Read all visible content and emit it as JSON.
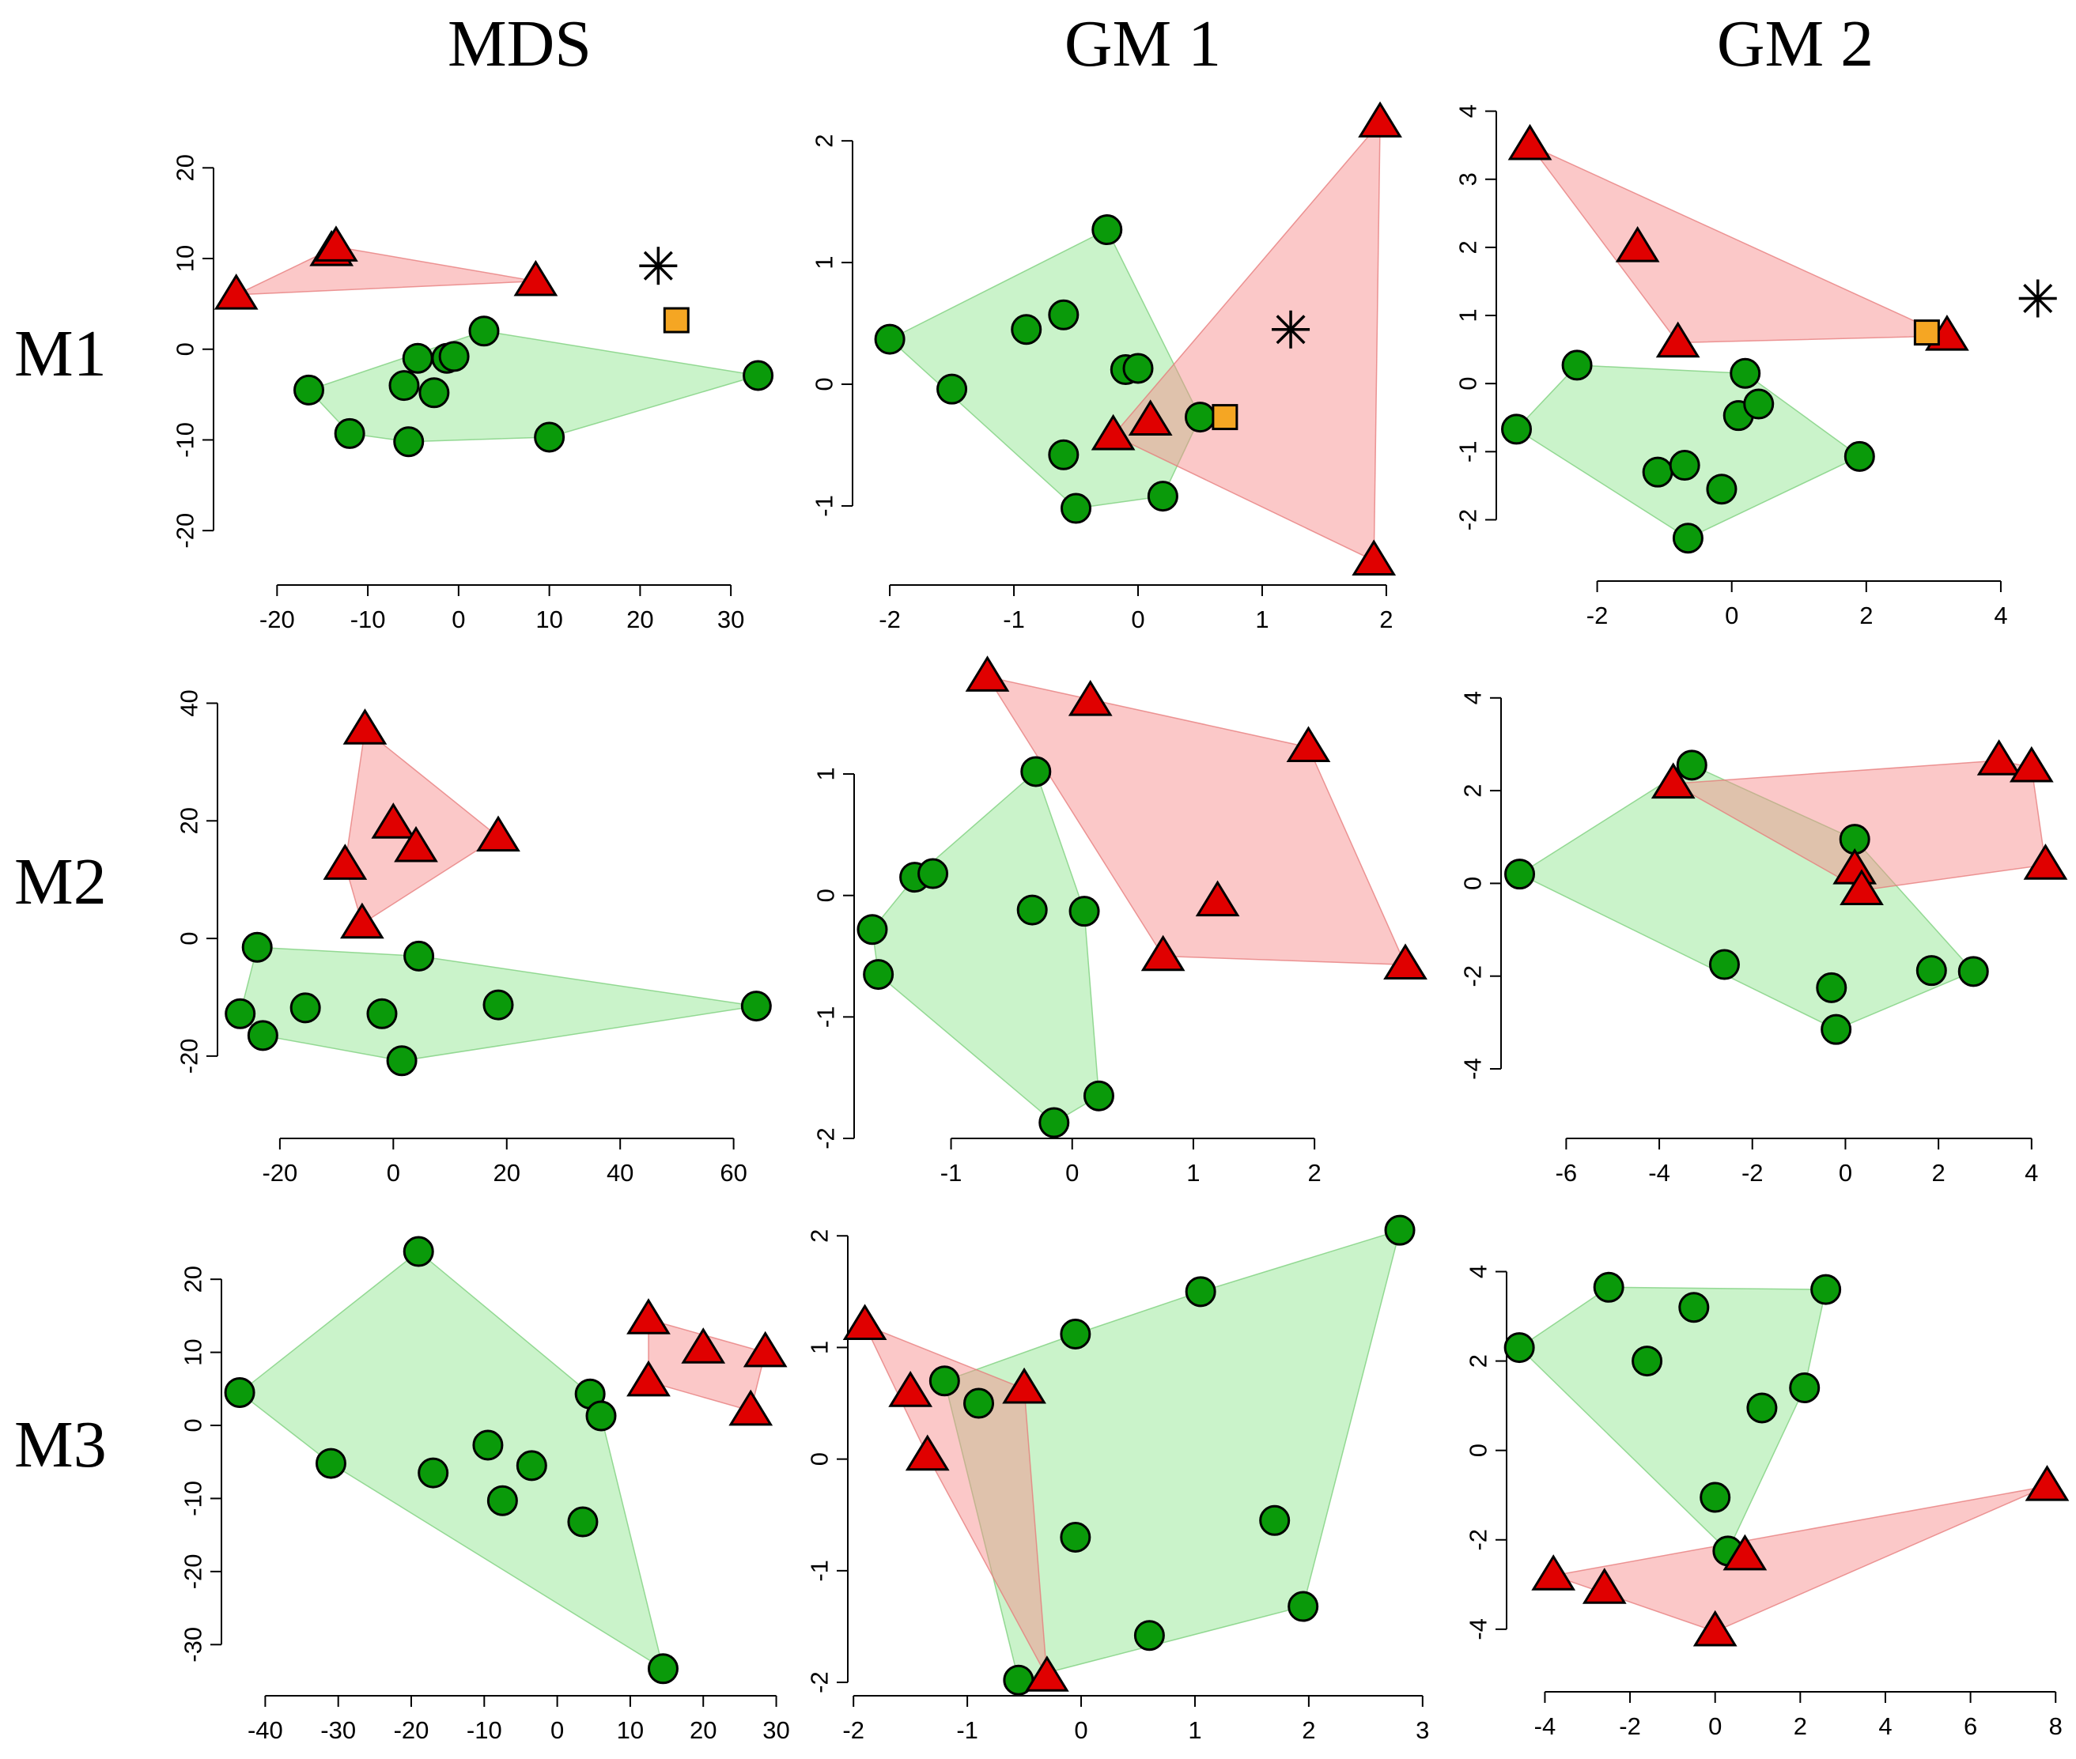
{
  "column_titles": [
    "MDS",
    "GM 1",
    "GM 2"
  ],
  "row_titles": [
    "M1",
    "M2",
    "M3"
  ],
  "colors": {
    "green_group": "#0a9a0a",
    "red_group": "#e00000",
    "square_marker": "#f5a623"
  },
  "chart_data": [
    {
      "type": "scatter",
      "row": "M1",
      "column": "MDS",
      "xlim": [
        -27,
        36
      ],
      "ylim": [
        -26,
        27
      ],
      "xticks": [
        -20,
        -10,
        0,
        10,
        20,
        30
      ],
      "yticks": [
        -20,
        -10,
        0,
        10,
        20
      ],
      "green": [
        [
          -16.5,
          -4.5
        ],
        [
          -12,
          -9.3
        ],
        [
          -5.5,
          -10.2
        ],
        [
          -6,
          -4
        ],
        [
          -4.5,
          -1
        ],
        [
          -2.7,
          -4.8
        ],
        [
          -1.3,
          -1
        ],
        [
          -0.5,
          -0.8
        ],
        [
          2.8,
          2
        ],
        [
          10,
          -9.7
        ],
        [
          33,
          -2.9
        ]
      ],
      "red": [
        [
          -24.5,
          6
        ],
        [
          -14,
          10.8
        ],
        [
          -13.5,
          11.3
        ],
        [
          8.5,
          7.5
        ]
      ],
      "square": [
        [
          24,
          3.2
        ]
      ],
      "star": [
        [
          22,
          9.2
        ]
      ]
    },
    {
      "type": "scatter",
      "row": "M1",
      "column": "GM 1",
      "xlim": [
        -2.3,
        2.3
      ],
      "ylim": [
        -1.65,
        2.3
      ],
      "xticks": [
        -2,
        -1,
        0,
        1,
        2
      ],
      "yticks": [
        -1,
        0,
        1,
        2
      ],
      "green": [
        [
          -2,
          0.37
        ],
        [
          -1.5,
          -0.04
        ],
        [
          -0.9,
          0.45
        ],
        [
          -0.6,
          0.57
        ],
        [
          -0.6,
          -0.58
        ],
        [
          -0.5,
          -1.02
        ],
        [
          -0.25,
          1.27
        ],
        [
          -0.1,
          0.12
        ],
        [
          0,
          0.13
        ],
        [
          0.2,
          -0.92
        ],
        [
          0.5,
          -0.27
        ]
      ],
      "red": [
        [
          -0.2,
          -0.42
        ],
        [
          0.1,
          -0.3
        ],
        [
          1.95,
          2.15
        ],
        [
          1.9,
          -1.45
        ]
      ],
      "square": [
        [
          0.7,
          -0.27
        ]
      ],
      "star": [
        [
          1.23,
          0.45
        ]
      ]
    },
    {
      "type": "scatter",
      "row": "M1",
      "column": "GM 2",
      "xlim": [
        -3.5,
        5.0
      ],
      "ylim": [
        -2.9,
        4.1
      ],
      "xticks": [
        -2,
        0,
        2,
        4
      ],
      "yticks": [
        -2,
        -1,
        0,
        1,
        2,
        3,
        4
      ],
      "green": [
        [
          -3.2,
          -0.67
        ],
        [
          -2.3,
          0.27
        ],
        [
          -1.1,
          -1.3
        ],
        [
          -0.7,
          -1.2
        ],
        [
          -0.65,
          -2.27
        ],
        [
          -0.15,
          -1.55
        ],
        [
          0.1,
          -0.47
        ],
        [
          0.2,
          0.15
        ],
        [
          0.4,
          -0.3
        ],
        [
          1.9,
          -1.07
        ]
      ],
      "red": [
        [
          -3,
          3.5
        ],
        [
          -1.4,
          2
        ],
        [
          -0.8,
          0.6
        ],
        [
          3.2,
          0.7
        ]
      ],
      "square": [
        [
          2.9,
          0.75
        ]
      ],
      "star": [
        [
          4.55,
          1.25
        ]
      ]
    },
    {
      "type": "scatter",
      "row": "M2",
      "column": "MDS",
      "xlim": [
        -31,
        68
      ],
      "ylim": [
        -34,
        48
      ],
      "xticks": [
        -20,
        0,
        20,
        40,
        60
      ],
      "yticks": [
        -20,
        0,
        20,
        40
      ],
      "green": [
        [
          -27,
          -12.8
        ],
        [
          -24,
          -1.5
        ],
        [
          -23,
          -16.5
        ],
        [
          -15.5,
          -11.8
        ],
        [
          -2,
          -12.8
        ],
        [
          1.5,
          -20.8
        ],
        [
          4.5,
          -3
        ],
        [
          18.5,
          -11.3
        ],
        [
          64,
          -11.5
        ]
      ],
      "red": [
        [
          -5,
          35.5
        ],
        [
          0,
          19.5
        ],
        [
          4,
          15.5
        ],
        [
          -8.5,
          12.5
        ],
        [
          -5.5,
          2.5
        ],
        [
          18.5,
          17.3
        ]
      ],
      "square": [],
      "star": []
    },
    {
      "type": "scatter",
      "row": "M2",
      "column": "GM 1",
      "xlim": [
        -1.8,
        2.9
      ],
      "ylim": [
        -2.0,
        1.97
      ],
      "xticks": [
        -1,
        0,
        1,
        2
      ],
      "yticks": [
        -2,
        -1,
        0,
        1
      ],
      "green": [
        [
          -1.65,
          -0.28
        ],
        [
          -1.6,
          -0.65
        ],
        [
          -1.3,
          0.15
        ],
        [
          -1.15,
          0.18
        ],
        [
          -0.3,
          1.02
        ],
        [
          -0.33,
          -0.12
        ],
        [
          0.1,
          -0.13
        ],
        [
          -0.15,
          -1.87
        ],
        [
          0.22,
          -1.65
        ]
      ],
      "red": [
        [
          -0.7,
          1.8
        ],
        [
          0.15,
          1.6
        ],
        [
          1.95,
          1.22
        ],
        [
          1.2,
          -0.05
        ],
        [
          0.75,
          -0.5
        ],
        [
          2.75,
          -0.57
        ]
      ],
      "square": [],
      "star": []
    },
    {
      "type": "scatter",
      "row": "M2",
      "column": "GM 2",
      "xlim": [
        -7.4,
        4.7
      ],
      "ylim": [
        -5.5,
        4.9
      ],
      "xticks": [
        -6,
        -4,
        -2,
        0,
        2,
        4
      ],
      "yticks": [
        -4,
        -2,
        0,
        2,
        4
      ],
      "green": [
        [
          -7,
          0.2
        ],
        [
          -3.3,
          2.55
        ],
        [
          0.2,
          0.95
        ],
        [
          -2.6,
          -1.75
        ],
        [
          -0.3,
          -2.25
        ],
        [
          -0.2,
          -3.15
        ],
        [
          1.85,
          -1.88
        ],
        [
          2.75,
          -1.9
        ]
      ],
      "red": [
        [
          -3.7,
          2.15
        ],
        [
          3.3,
          2.65
        ],
        [
          4.0,
          2.5
        ],
        [
          4.3,
          0.4
        ],
        [
          0.2,
          0.3
        ],
        [
          0.35,
          -0.15
        ]
      ],
      "square": [],
      "star": []
    },
    {
      "type": "scatter",
      "row": "M3",
      "column": "MDS",
      "xlim": [
        -46,
        32
      ],
      "ylim": [
        -37,
        29
      ],
      "xticks": [
        -40,
        -30,
        -20,
        -10,
        0,
        10,
        20,
        30
      ],
      "yticks": [
        -30,
        -20,
        -10,
        0,
        10,
        20
      ],
      "green": [
        [
          -43.5,
          4.5
        ],
        [
          -31,
          -5.2
        ],
        [
          -19,
          23.8
        ],
        [
          -17,
          -6.5
        ],
        [
          -9.5,
          -2.7
        ],
        [
          -7.5,
          -10.3
        ],
        [
          -3.5,
          -5.5
        ],
        [
          3.5,
          -13.2
        ],
        [
          4.5,
          4.3
        ],
        [
          6,
          1.3
        ],
        [
          14.5,
          -33.3
        ]
      ],
      "red": [
        [
          12.5,
          14.5
        ],
        [
          12.5,
          6
        ],
        [
          20,
          10.5
        ],
        [
          26.5,
          2
        ],
        [
          28.5,
          10
        ]
      ],
      "square": [],
      "star": []
    },
    {
      "type": "scatter",
      "row": "M3",
      "column": "GM 2",
      "xlim": [
        -4.9,
        8.2
      ],
      "ylim": [
        -5.4,
        5.3
      ],
      "xticks": [
        -4,
        -2,
        0,
        2,
        4,
        6,
        8
      ],
      "yticks": [
        -4,
        -2,
        0,
        2,
        4
      ],
      "green": [
        [
          -4.6,
          2.3
        ],
        [
          -2.5,
          3.65
        ],
        [
          -1.6,
          2
        ],
        [
          -0.5,
          3.2
        ],
        [
          0,
          -1.05
        ],
        [
          0.3,
          -2.25
        ],
        [
          1.1,
          0.95
        ],
        [
          2.1,
          1.4
        ],
        [
          2.6,
          3.6
        ]
      ],
      "red": [
        [
          -3.8,
          -2.8
        ],
        [
          -2.6,
          -3.1
        ],
        [
          0.0,
          -4.05
        ],
        [
          0.7,
          -2.35
        ],
        [
          7.8,
          -0.8
        ]
      ],
      "square": [],
      "star": []
    },
    {
      "type": "scatter",
      "row": "M3",
      "column": "GM 1",
      "xlim": [
        -2.05,
        3.05
      ],
      "ylim": [
        -2.12,
        2.2
      ],
      "xticks": [
        -2,
        -1,
        0,
        1,
        2,
        3
      ],
      "yticks": [
        -2,
        -1,
        0,
        1,
        2
      ],
      "green": [
        [
          -1.2,
          0.7
        ],
        [
          -0.9,
          0.5
        ],
        [
          -0.55,
          -1.98
        ],
        [
          -0.05,
          1.12
        ],
        [
          -0.05,
          -0.7
        ],
        [
          0.6,
          -1.58
        ],
        [
          1.05,
          1.5
        ],
        [
          1.7,
          -0.55
        ],
        [
          1.95,
          -1.32
        ],
        [
          2.8,
          2.05
        ]
      ],
      "red": [
        [
          -1.9,
          1.2
        ],
        [
          -1.5,
          0.6
        ],
        [
          -1.35,
          0.03
        ],
        [
          -0.5,
          0.63
        ],
        [
          -0.3,
          -1.95
        ]
      ],
      "square": [],
      "star": []
    }
  ]
}
